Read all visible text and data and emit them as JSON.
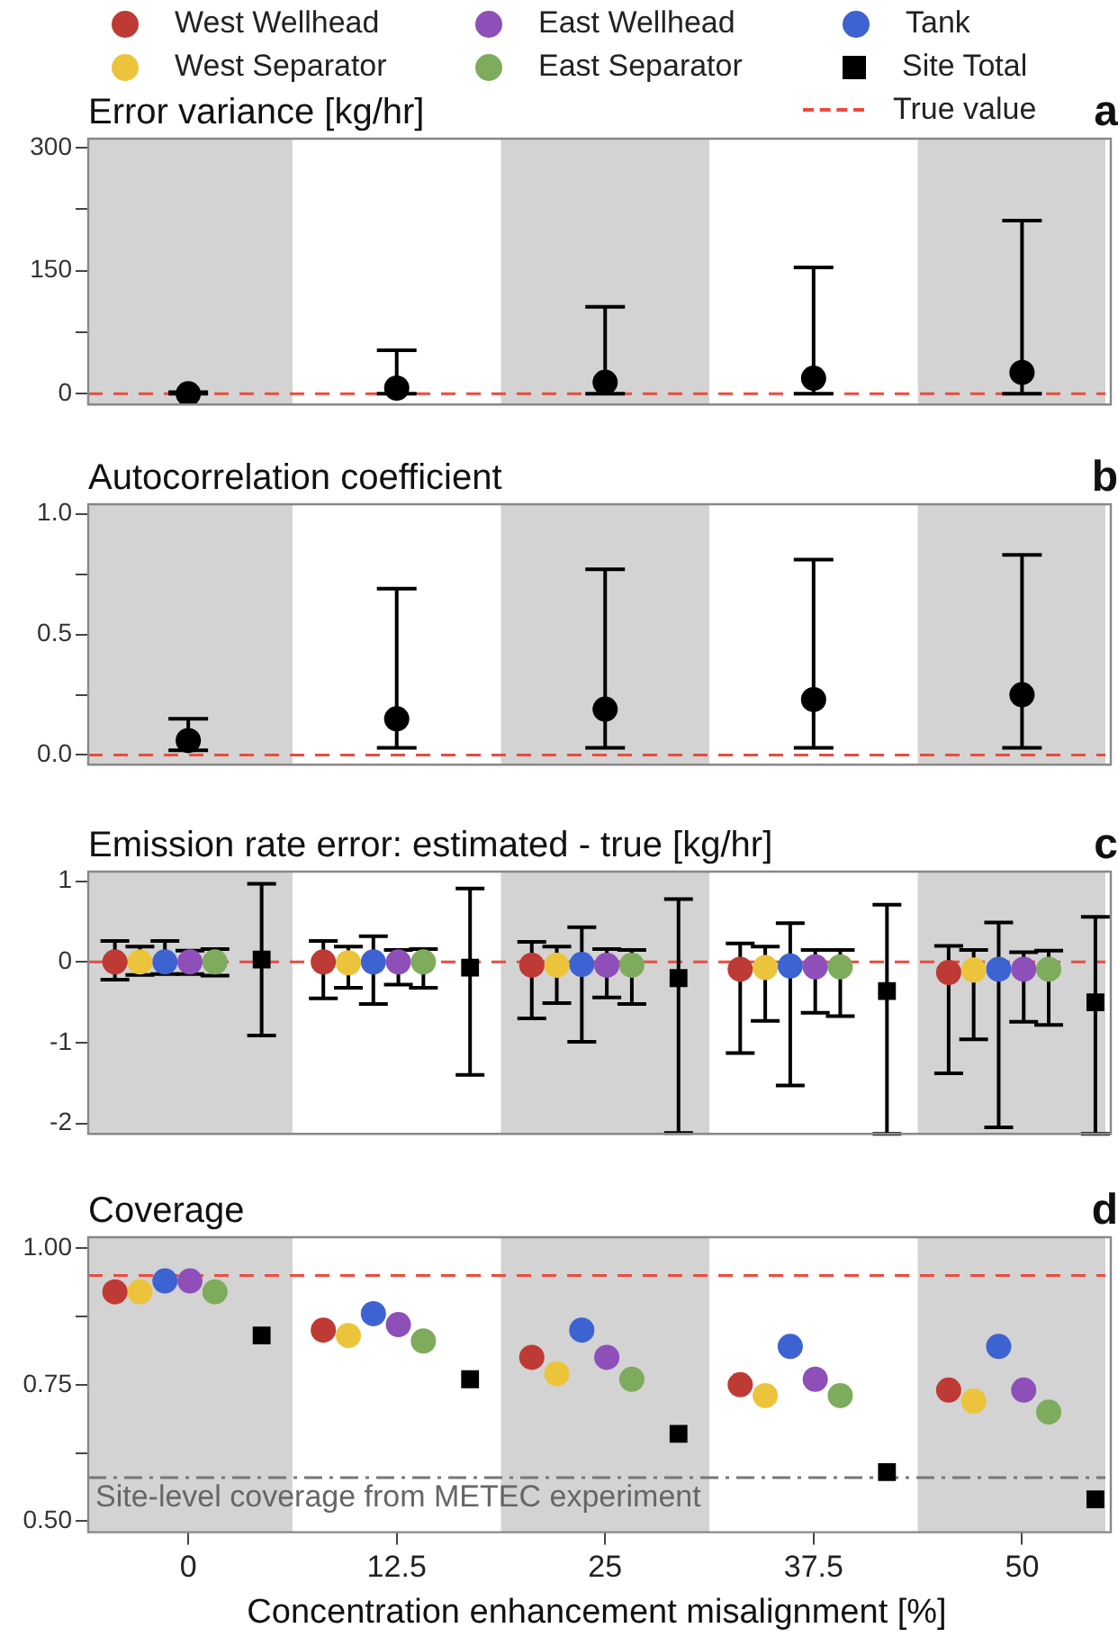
{
  "chart_data": [
    {
      "type": "scatter",
      "title": "Error variance [kg/hr]",
      "annotations": [
        "a"
      ],
      "xlim": [
        -6,
        55
      ],
      "ylim": [
        -13,
        311
      ],
      "yticks": [
        0,
        {
          "value": 75,
          "label": null
        },
        150,
        {
          "value": 225,
          "label": null
        },
        300
      ],
      "tick_labels": "y",
      "grid": false,
      "legend": false,
      "bands": [
        {
          "axis": "x",
          "from": -6,
          "to": 6.25,
          "color": "#d3d3d3"
        },
        {
          "axis": "x",
          "from": 18.75,
          "to": 31.25,
          "color": "#d3d3d3"
        },
        {
          "axis": "x",
          "from": 43.75,
          "to": 55,
          "color": "#d3d3d3"
        }
      ],
      "ref_lines": [
        {
          "axis": "y",
          "value": 0,
          "color": "#ee4b3c",
          "line_style": "dashed"
        }
      ],
      "series": [
        {
          "color": "#000000",
          "marker": "circle",
          "x": [
            0,
            12.5,
            25,
            37.5,
            50
          ],
          "values": [
            0,
            7,
            14,
            19,
            26
          ],
          "errors": [
            [
              0,
              2
            ],
            [
              0,
              53
            ],
            [
              0,
              106
            ],
            [
              0,
              154
            ],
            [
              0,
              211
            ]
          ]
        }
      ]
    },
    {
      "type": "scatter",
      "title": "Autocorrelation coefficient",
      "annotations": [
        "b"
      ],
      "xlim": [
        -6,
        55
      ],
      "ylim": [
        -0.04,
        1.04
      ],
      "yticks": [
        {
          "value": 0,
          "label": "0.0"
        },
        {
          "value": 0.25,
          "label": null
        },
        {
          "value": 0.5,
          "label": "0.5"
        },
        {
          "value": 0.75,
          "label": null
        },
        {
          "value": 1,
          "label": "1.0"
        }
      ],
      "tick_labels": "y",
      "grid": false,
      "legend": false,
      "bands": [
        {
          "axis": "x",
          "from": -6,
          "to": 6.25,
          "color": "#d3d3d3"
        },
        {
          "axis": "x",
          "from": 18.75,
          "to": 31.25,
          "color": "#d3d3d3"
        },
        {
          "axis": "x",
          "from": 43.75,
          "to": 55,
          "color": "#d3d3d3"
        }
      ],
      "ref_lines": [
        {
          "axis": "y",
          "value": 0,
          "color": "#ee4b3c",
          "line_style": "dashed"
        }
      ],
      "series": [
        {
          "color": "#000000",
          "marker": "circle",
          "x": [
            0,
            12.5,
            25,
            37.5,
            50
          ],
          "values": [
            0.06,
            0.15,
            0.19,
            0.23,
            0.25
          ],
          "errors": [
            [
              0.02,
              0.15
            ],
            [
              0.03,
              0.69
            ],
            [
              0.03,
              0.77
            ],
            [
              0.03,
              0.81
            ],
            [
              0.03,
              0.83
            ]
          ]
        }
      ]
    },
    {
      "type": "scatter",
      "title": "Emission rate error: estimated - true [kg/hr]",
      "annotations": [
        "c"
      ],
      "xlim": [
        -6,
        55
      ],
      "ylim": [
        -2.13,
        1.12
      ],
      "yticks": [
        -2,
        -1,
        0,
        1
      ],
      "tick_labels": "y",
      "grid": false,
      "legend": "top",
      "bands": [
        {
          "axis": "x",
          "from": -6,
          "to": 6.25,
          "color": "#d3d3d3"
        },
        {
          "axis": "x",
          "from": 18.75,
          "to": 31.25,
          "color": "#d3d3d3"
        },
        {
          "axis": "x",
          "from": 43.75,
          "to": 55,
          "color": "#d3d3d3"
        }
      ],
      "ref_lines": [
        {
          "axis": "y",
          "value": 0,
          "color": "#ee4b3c",
          "line_style": "dashed",
          "label": "True value"
        }
      ],
      "series": [
        {
          "name": "West Wellhead",
          "color": "#be3a34",
          "marker": "circle",
          "x": [
            -4.4,
            8.1,
            20.6,
            33.1,
            45.6
          ],
          "values": [
            0,
            0,
            -0.04,
            -0.09,
            -0.13
          ],
          "errors": [
            [
              -0.22,
              0.26
            ],
            [
              -0.45,
              0.26
            ],
            [
              -0.7,
              0.25
            ],
            [
              -1.13,
              0.23
            ],
            [
              -1.38,
              0.2
            ]
          ]
        },
        {
          "name": "West Separator",
          "color": "#ebc43c",
          "marker": "circle",
          "x": [
            -2.9,
            9.6,
            22.1,
            34.6,
            47.1
          ],
          "values": [
            0,
            -0.01,
            -0.04,
            -0.07,
            -0.1
          ],
          "errors": [
            [
              -0.16,
              0.19
            ],
            [
              -0.32,
              0.19
            ],
            [
              -0.51,
              0.19
            ],
            [
              -0.73,
              0.19
            ],
            [
              -0.96,
              0.15
            ]
          ]
        },
        {
          "name": "East Wellhead",
          "color": "#8e4fb8",
          "marker": "circle",
          "x": [
            0.1,
            12.6,
            25.1,
            37.6,
            50.1
          ],
          "values": [
            0,
            0,
            -0.04,
            -0.06,
            -0.09
          ],
          "errors": [
            [
              -0.15,
              0.14
            ],
            [
              -0.28,
              0.15
            ],
            [
              -0.44,
              0.16
            ],
            [
              -0.63,
              0.15
            ],
            [
              -0.74,
              0.12
            ]
          ]
        },
        {
          "name": "East Separator",
          "color": "#7fab5c",
          "marker": "circle",
          "x": [
            1.6,
            14.1,
            26.6,
            39.1,
            51.6
          ],
          "values": [
            0,
            0,
            -0.04,
            -0.06,
            -0.09
          ],
          "errors": [
            [
              -0.17,
              0.16
            ],
            [
              -0.32,
              0.16
            ],
            [
              -0.52,
              0.15
            ],
            [
              -0.67,
              0.15
            ],
            [
              -0.78,
              0.14
            ]
          ]
        },
        {
          "name": "Tank",
          "color": "#3d62d1",
          "marker": "circle",
          "x": [
            -1.4,
            11.1,
            23.6,
            36.1,
            48.6
          ],
          "values": [
            0,
            0,
            -0.03,
            -0.05,
            -0.09
          ],
          "errors": [
            [
              -0.15,
              0.26
            ],
            [
              -0.52,
              0.32
            ],
            [
              -0.99,
              0.43
            ],
            [
              -1.53,
              0.48
            ],
            [
              -2.05,
              0.49
            ]
          ]
        },
        {
          "name": "Site Total",
          "color": "#000000",
          "marker": "square",
          "x": [
            4.4,
            16.9,
            29.4,
            41.9,
            54.4
          ],
          "values": [
            0.03,
            -0.07,
            -0.2,
            -0.36,
            -0.5
          ],
          "errors": [
            [
              -0.91,
              0.97
            ],
            [
              -1.4,
              0.91
            ],
            [
              -2.12,
              0.78
            ],
            [
              -2.13,
              0.71
            ],
            [
              -2.13,
              0.56
            ]
          ]
        }
      ]
    },
    {
      "type": "scatter",
      "title": "Coverage",
      "annotations": [
        "d"
      ],
      "xlabel": "Concentration enhancement misalignment [%]",
      "xlim": [
        -6,
        55
      ],
      "xticks": [
        0,
        12.5,
        25,
        37.5,
        50
      ],
      "ylim": [
        0.48,
        1.02
      ],
      "yticks": [
        {
          "value": 0.5,
          "label": "0.50"
        },
        {
          "value": 0.625,
          "label": null
        },
        {
          "value": 0.75,
          "label": "0.75"
        },
        {
          "value": 0.875,
          "label": null
        },
        {
          "value": 1,
          "label": "1.00"
        }
      ],
      "grid": false,
      "legend": false,
      "bands": [
        {
          "axis": "x",
          "from": -6,
          "to": 6.25,
          "color": "#d3d3d3"
        },
        {
          "axis": "x",
          "from": 18.75,
          "to": 31.25,
          "color": "#d3d3d3"
        },
        {
          "axis": "x",
          "from": 43.75,
          "to": 55,
          "color": "#d3d3d3"
        }
      ],
      "ref_lines": [
        {
          "axis": "y",
          "value": 0.95,
          "color": "#ee4b3c",
          "line_style": "dashed"
        },
        {
          "axis": "y",
          "value": 0.58,
          "color": "#777777",
          "line_style": "dashdot",
          "label": "Site-level coverage from METEC experiment"
        }
      ],
      "series": [
        {
          "color": "#be3a34",
          "marker": "circle",
          "x": [
            -4.4,
            8.1,
            20.6,
            33.1,
            45.6
          ],
          "values": [
            0.92,
            0.85,
            0.8,
            0.75,
            0.74
          ]
        },
        {
          "color": "#ebc43c",
          "marker": "circle",
          "x": [
            -2.9,
            9.6,
            22.1,
            34.6,
            47.1
          ],
          "values": [
            0.92,
            0.84,
            0.77,
            0.73,
            0.72
          ]
        },
        {
          "color": "#8e4fb8",
          "marker": "circle",
          "x": [
            0.1,
            12.6,
            25.1,
            37.6,
            50.1
          ],
          "values": [
            0.94,
            0.86,
            0.8,
            0.76,
            0.74
          ]
        },
        {
          "color": "#7fab5c",
          "marker": "circle",
          "x": [
            1.6,
            14.1,
            26.6,
            39.1,
            51.6
          ],
          "values": [
            0.92,
            0.83,
            0.76,
            0.73,
            0.7
          ]
        },
        {
          "color": "#3d62d1",
          "marker": "circle",
          "x": [
            -1.4,
            11.1,
            23.6,
            36.1,
            48.6
          ],
          "values": [
            0.94,
            0.88,
            0.85,
            0.82,
            0.82
          ]
        },
        {
          "color": "#000000",
          "marker": "square",
          "x": [
            4.4,
            16.9,
            29.4,
            41.9,
            54.4
          ],
          "values": [
            0.84,
            0.76,
            0.66,
            0.59,
            0.54
          ]
        }
      ]
    }
  ]
}
